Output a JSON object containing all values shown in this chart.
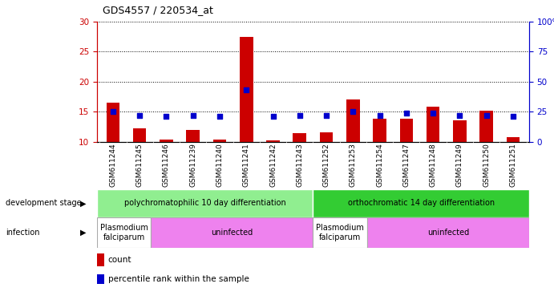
{
  "title": "GDS4557 / 220534_at",
  "samples": [
    "GSM611244",
    "GSM611245",
    "GSM611246",
    "GSM611239",
    "GSM611240",
    "GSM611241",
    "GSM611242",
    "GSM611243",
    "GSM611252",
    "GSM611253",
    "GSM611254",
    "GSM611247",
    "GSM611248",
    "GSM611249",
    "GSM611250",
    "GSM611251"
  ],
  "counts": [
    16.5,
    12.2,
    10.4,
    12.0,
    10.4,
    27.5,
    10.2,
    11.4,
    11.5,
    17.0,
    13.8,
    13.8,
    15.8,
    13.5,
    15.1,
    10.8
  ],
  "percentiles": [
    25,
    22,
    21,
    22,
    21,
    43,
    21,
    22,
    22,
    25,
    22,
    24,
    24,
    22,
    22,
    21
  ],
  "ylim_left": [
    10,
    30
  ],
  "ylim_right": [
    0,
    100
  ],
  "yticks_left": [
    10,
    15,
    20,
    25,
    30
  ],
  "yticks_right": [
    0,
    25,
    50,
    75,
    100
  ],
  "bar_color": "#cc0000",
  "dot_color": "#0000cc",
  "plot_bg": "#ffffff",
  "xtick_bg": "#d0d0d0",
  "dev_stage_groups": [
    {
      "label": "polychromatophilic 10 day differentiation",
      "start": 0,
      "end": 8,
      "color": "#90ee90"
    },
    {
      "label": "orthochromatic 14 day differentiation",
      "start": 8,
      "end": 16,
      "color": "#33cc33"
    }
  ],
  "infection_groups": [
    {
      "label": "Plasmodium\nfalciparum",
      "start": 0,
      "end": 2,
      "color": "#ffffff"
    },
    {
      "label": "uninfected",
      "start": 2,
      "end": 8,
      "color": "#ee82ee"
    },
    {
      "label": "Plasmodium\nfalciparum",
      "start": 8,
      "end": 10,
      "color": "#ffffff"
    },
    {
      "label": "uninfected",
      "start": 10,
      "end": 16,
      "color": "#ee82ee"
    }
  ],
  "left_axis_color": "#cc0000",
  "right_axis_color": "#0000cc",
  "legend_count_color": "#cc0000",
  "legend_dot_color": "#0000cc"
}
